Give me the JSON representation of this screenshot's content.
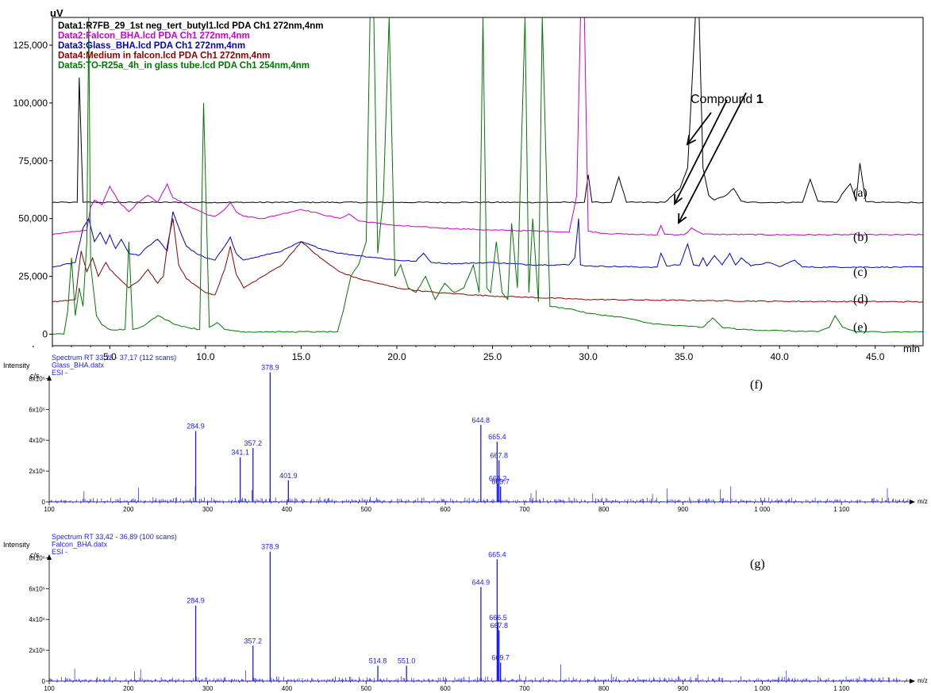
{
  "chart_data": [
    {
      "type": "line",
      "yunit": "uV",
      "xunit": "min",
      "xlim": [
        2.0,
        47.5
      ],
      "ylim": [
        -5000,
        137000
      ],
      "yticks": [
        0,
        25000,
        50000,
        75000,
        100000,
        125000
      ],
      "ytick_labels": [
        "0",
        "25,000",
        "50,000",
        "75,000",
        "100,000",
        "125,000"
      ],
      "xticks": [
        5,
        10,
        15,
        20,
        25,
        30,
        35,
        40,
        45
      ],
      "xtick_labels": [
        "5.0",
        "10.0",
        "15.0",
        "20.0",
        "25.0",
        "30.0",
        "35.0",
        "40.0",
        "45.0"
      ],
      "legend_position": "top-left",
      "legend": [
        {
          "text": "Data1:R7FB_29_1st neg_tert_butyl1.lcd PDA Ch1 272nm,4nm",
          "color": "#000000"
        },
        {
          "text": "Data2:Falcon_BHA.lcd PDA Ch1 272nm,4nm",
          "color": "#cc00cc"
        },
        {
          "text": "Data3:Glass_BHA.lcd PDA Ch1 272nm,4nm",
          "color": "#0000cc"
        },
        {
          "text": "Data4:Medium in falcon.lcd PDA Ch1 272nm,4nm",
          "color": "#8b0000"
        },
        {
          "text": "Data5:TO-R25a_4h_in glass tube.lcd PDA Ch1 254nm,4nm",
          "color": "#007700"
        }
      ],
      "annotation": {
        "text": "Compound ",
        "bold": "1",
        "x": 35.8
      },
      "trace_labels": [
        "(a)",
        "(b)",
        "(c)",
        "(d)",
        "(e)"
      ],
      "series": [
        {
          "name": "Data1",
          "color": "#000000",
          "baseline": 57000,
          "x": [
            2.0,
            3.0,
            3.3,
            3.4,
            3.6,
            20.0,
            29.8,
            30.0,
            30.2,
            30.6,
            31.2,
            31.6,
            32.0,
            33.0,
            34.0,
            34.8,
            35.2,
            35.6,
            35.8,
            36.0,
            36.3,
            36.6,
            37.2,
            37.6,
            38.0,
            38.4,
            41.2,
            41.6,
            42.0,
            43.0,
            43.4,
            43.7,
            44.0,
            44.2,
            44.5,
            45.0,
            47.5
          ],
          "y": [
            57000,
            57000,
            57000,
            111000,
            57000,
            57000,
            57000,
            69000,
            57000,
            57000,
            57000,
            68000,
            57000,
            57000,
            57000,
            63000,
            72000,
            137000,
            137000,
            72000,
            60000,
            58000,
            60000,
            63000,
            57500,
            57000,
            57000,
            67000,
            57500,
            57000,
            62000,
            65000,
            57500,
            74000,
            57500,
            57000,
            57000
          ]
        },
        {
          "name": "Data2",
          "color": "#cc00cc",
          "baseline": 43000,
          "x": [
            2.0,
            3.8,
            4.0,
            4.2,
            4.6,
            5.0,
            5.5,
            6.0,
            6.5,
            7.0,
            7.5,
            8.0,
            8.3,
            9.0,
            9.5,
            10.0,
            10.5,
            11.0,
            11.3,
            11.6,
            12.0,
            13.0,
            14.0,
            15.0,
            16.0,
            17.0,
            17.5,
            18.0,
            19.0,
            20.0,
            22.0,
            25.0,
            28.0,
            29.0,
            29.4,
            29.6,
            29.8,
            30.0,
            30.5,
            31.0,
            33.0,
            33.6,
            33.8,
            34.0,
            35.0,
            35.2,
            35.4,
            36.0,
            40.0,
            47.5
          ],
          "y": [
            43000,
            45000,
            55000,
            58000,
            56000,
            64000,
            57000,
            53000,
            57000,
            60000,
            57000,
            65000,
            59000,
            56000,
            54000,
            52000,
            51000,
            54000,
            57000,
            53000,
            51000,
            50000,
            52000,
            54000,
            52000,
            50000,
            52000,
            49000,
            48000,
            47000,
            46000,
            45000,
            44500,
            44000,
            60000,
            137000,
            137000,
            44500,
            44000,
            43500,
            43000,
            43000,
            47000,
            43200,
            43000,
            44000,
            46000,
            43200,
            43000,
            43000
          ]
        },
        {
          "name": "Data3",
          "color": "#0000cc",
          "baseline": 29000,
          "x": [
            2.0,
            3.2,
            3.6,
            3.9,
            4.2,
            4.5,
            4.8,
            5.0,
            5.3,
            5.6,
            6.0,
            6.5,
            7.0,
            7.5,
            8.0,
            8.3,
            8.7,
            9.0,
            9.5,
            10.0,
            10.5,
            11.0,
            11.3,
            11.6,
            12.0,
            13.0,
            14.0,
            15.0,
            16.0,
            17.0,
            18.0,
            19.0,
            20.0,
            21.0,
            21.4,
            21.8,
            23.0,
            25.0,
            27.0,
            29.0,
            29.3,
            29.5,
            29.6,
            30.0,
            33.0,
            33.6,
            33.8,
            34.1,
            34.8,
            35.2,
            35.5,
            35.8,
            36.0,
            36.2,
            36.6,
            37.0,
            37.4,
            37.7,
            38.0,
            38.5,
            39.4,
            40.0,
            40.8,
            41.2,
            47.5
          ],
          "y": [
            29000,
            31000,
            46000,
            50000,
            40000,
            44000,
            39000,
            43000,
            37000,
            41000,
            35000,
            34000,
            38000,
            41000,
            36000,
            53000,
            44000,
            38000,
            35000,
            33000,
            32000,
            38000,
            42000,
            35000,
            32000,
            34000,
            36000,
            40000,
            37000,
            35000,
            34000,
            33000,
            32000,
            31500,
            35000,
            31000,
            30500,
            31000,
            30000,
            30000,
            33000,
            50000,
            30000,
            29500,
            29000,
            29000,
            35000,
            29500,
            30000,
            39000,
            30000,
            29500,
            33000,
            29500,
            34000,
            30000,
            35000,
            30000,
            33000,
            29500,
            31000,
            29200,
            32000,
            29000,
            29000
          ]
        },
        {
          "name": "Data4",
          "color": "#8b0000",
          "baseline": 14000,
          "x": [
            2.0,
            3.2,
            3.5,
            3.8,
            4.1,
            4.4,
            4.8,
            5.0,
            5.5,
            6.0,
            6.5,
            7.0,
            7.5,
            7.8,
            8.0,
            8.3,
            8.6,
            9.0,
            9.5,
            10.0,
            10.5,
            11.0,
            11.3,
            11.6,
            12.0,
            13.0,
            14.0,
            15.0,
            16.0,
            17.0,
            18.0,
            19.0,
            20.0,
            22.0,
            25.0,
            30.0,
            40.0,
            47.5
          ],
          "y": [
            14000,
            15000,
            36000,
            27000,
            33000,
            25000,
            31000,
            28000,
            24000,
            20000,
            23000,
            28000,
            22000,
            25000,
            38000,
            50000,
            30000,
            24000,
            21000,
            18000,
            17000,
            28000,
            38000,
            26000,
            20000,
            25000,
            30000,
            40000,
            33000,
            27000,
            24000,
            22000,
            20000,
            18000,
            16500,
            15000,
            14200,
            14000
          ]
        },
        {
          "name": "Data5",
          "color": "#007700",
          "baseline": 0,
          "x": [
            2.0,
            2.6,
            2.8,
            3.0,
            3.2,
            3.4,
            3.6,
            3.8,
            3.9,
            4.0,
            4.3,
            4.6,
            5.0,
            5.8,
            6.0,
            6.2,
            6.6,
            7.0,
            7.5,
            8.0,
            8.5,
            9.0,
            9.7,
            9.9,
            10.2,
            10.6,
            11.0,
            12.0,
            14.0,
            16.0,
            16.9,
            17.2,
            17.6,
            18.0,
            18.4,
            18.6,
            18.8,
            19.0,
            19.3,
            19.6,
            19.9,
            20.2,
            20.6,
            21.0,
            21.5,
            22.0,
            22.5,
            23.0,
            23.5,
            24.0,
            24.3,
            24.5,
            24.7,
            24.9,
            25.2,
            25.5,
            25.8,
            26.0,
            26.3,
            26.7,
            26.9,
            27.1,
            27.4,
            27.6,
            28.0,
            29.0,
            30.0,
            31.0,
            32.0,
            33.0,
            34.0,
            36.0,
            36.5,
            37.0,
            38.0,
            40.0,
            42.0,
            42.6,
            42.9,
            43.3,
            44.0,
            46.0,
            47.5
          ],
          "y": [
            0,
            0,
            10000,
            33000,
            8000,
            20000,
            12000,
            40000,
            137000,
            30000,
            8000,
            4000,
            2000,
            2000,
            40000,
            2000,
            3000,
            5000,
            8000,
            6000,
            4000,
            3000,
            2000,
            100000,
            3000,
            5000,
            2000,
            1000,
            1000,
            1000,
            1000,
            10000,
            25000,
            30000,
            40000,
            137000,
            137000,
            35000,
            60000,
            137000,
            25000,
            30000,
            20000,
            18000,
            25000,
            15000,
            22000,
            18000,
            20000,
            30000,
            18000,
            137000,
            20000,
            18000,
            40000,
            18000,
            15000,
            48000,
            20000,
            137000,
            18000,
            50000,
            14000,
            137000,
            12000,
            11000,
            9000,
            8000,
            7000,
            5000,
            4000,
            3000,
            7000,
            3000,
            2000,
            1500,
            1000,
            3000,
            8000,
            3000,
            1000,
            1000,
            1000
          ]
        }
      ]
    },
    {
      "type": "bar",
      "header_lines": [
        "Spectrum RT 33,28 - 37,17 (112 scans)",
        "Glass_BHA.datx",
        "ESI -"
      ],
      "intensity_label": "Intensity",
      "yunit": "c/s",
      "xunit": "m/z",
      "xlim": [
        100,
        1190
      ],
      "ylim": [
        0,
        9000000
      ],
      "yticks": [
        0,
        2000000,
        4000000,
        6000000,
        8000000
      ],
      "ytick_labels": [
        "0",
        "2x10⁶",
        "4x10⁶",
        "6x10⁶",
        "8x10⁶"
      ],
      "xticks": [
        100,
        200,
        300,
        400,
        500,
        600,
        700,
        800,
        900,
        1000,
        1100
      ],
      "xtick_labels": [
        "100",
        "200",
        "300",
        "400",
        "500",
        "600",
        "700",
        "800",
        "900",
        "1 000",
        "1 100"
      ],
      "panel_label": "(f)",
      "peaks": [
        {
          "mz": 284.9,
          "intensity": 4600000,
          "label": "284.9"
        },
        {
          "mz": 341.1,
          "intensity": 2900000,
          "label": "341.1"
        },
        {
          "mz": 357.2,
          "intensity": 3500000,
          "label": "357.2"
        },
        {
          "mz": 378.9,
          "intensity": 8400000,
          "label": "378.9"
        },
        {
          "mz": 401.9,
          "intensity": 1400000,
          "label": "401.9"
        },
        {
          "mz": 644.8,
          "intensity": 5000000,
          "label": "644.8"
        },
        {
          "mz": 665.4,
          "intensity": 3900000,
          "label": "665.4"
        },
        {
          "mz": 667.8,
          "intensity": 2700000,
          "label": "667.8"
        },
        {
          "mz": 666.2,
          "intensity": 1200000,
          "label": "666.2"
        },
        {
          "mz": 669.7,
          "intensity": 1000000,
          "label": "669.7"
        }
      ]
    },
    {
      "type": "bar",
      "header_lines": [
        "Spectrum RT 33,42 - 36,89 (100 scans)",
        "Falcon_BHA.datx",
        "ESI -"
      ],
      "intensity_label": "Intensity",
      "yunit": "c/s",
      "xunit": "m/z",
      "xlim": [
        100,
        1190
      ],
      "ylim": [
        0,
        9000000
      ],
      "yticks": [
        0,
        2000000,
        4000000,
        6000000,
        8000000
      ],
      "ytick_labels": [
        "0",
        "2x10⁶",
        "4x10⁶",
        "6x10⁶",
        "8x10⁶"
      ],
      "xticks": [
        100,
        200,
        300,
        400,
        500,
        600,
        700,
        800,
        900,
        1000,
        1100
      ],
      "xtick_labels": [
        "100",
        "200",
        "300",
        "400",
        "500",
        "600",
        "700",
        "800",
        "900",
        "1 000",
        "1 100"
      ],
      "panel_label": "(g)",
      "peaks": [
        {
          "mz": 284.9,
          "intensity": 4900000,
          "label": "284.9"
        },
        {
          "mz": 357.2,
          "intensity": 2300000,
          "label": "357.2"
        },
        {
          "mz": 378.9,
          "intensity": 8400000,
          "label": "378.9"
        },
        {
          "mz": 514.8,
          "intensity": 1000000,
          "label": "514.8"
        },
        {
          "mz": 551.0,
          "intensity": 1000000,
          "label": "551.0"
        },
        {
          "mz": 644.9,
          "intensity": 6100000,
          "label": "644.9"
        },
        {
          "mz": 665.4,
          "intensity": 7900000,
          "label": "665.4"
        },
        {
          "mz": 666.5,
          "intensity": 3800000,
          "label": "666.5"
        },
        {
          "mz": 667.8,
          "intensity": 3300000,
          "label": "667.8"
        },
        {
          "mz": 669.7,
          "intensity": 1200000,
          "label": "669.7"
        }
      ]
    }
  ]
}
